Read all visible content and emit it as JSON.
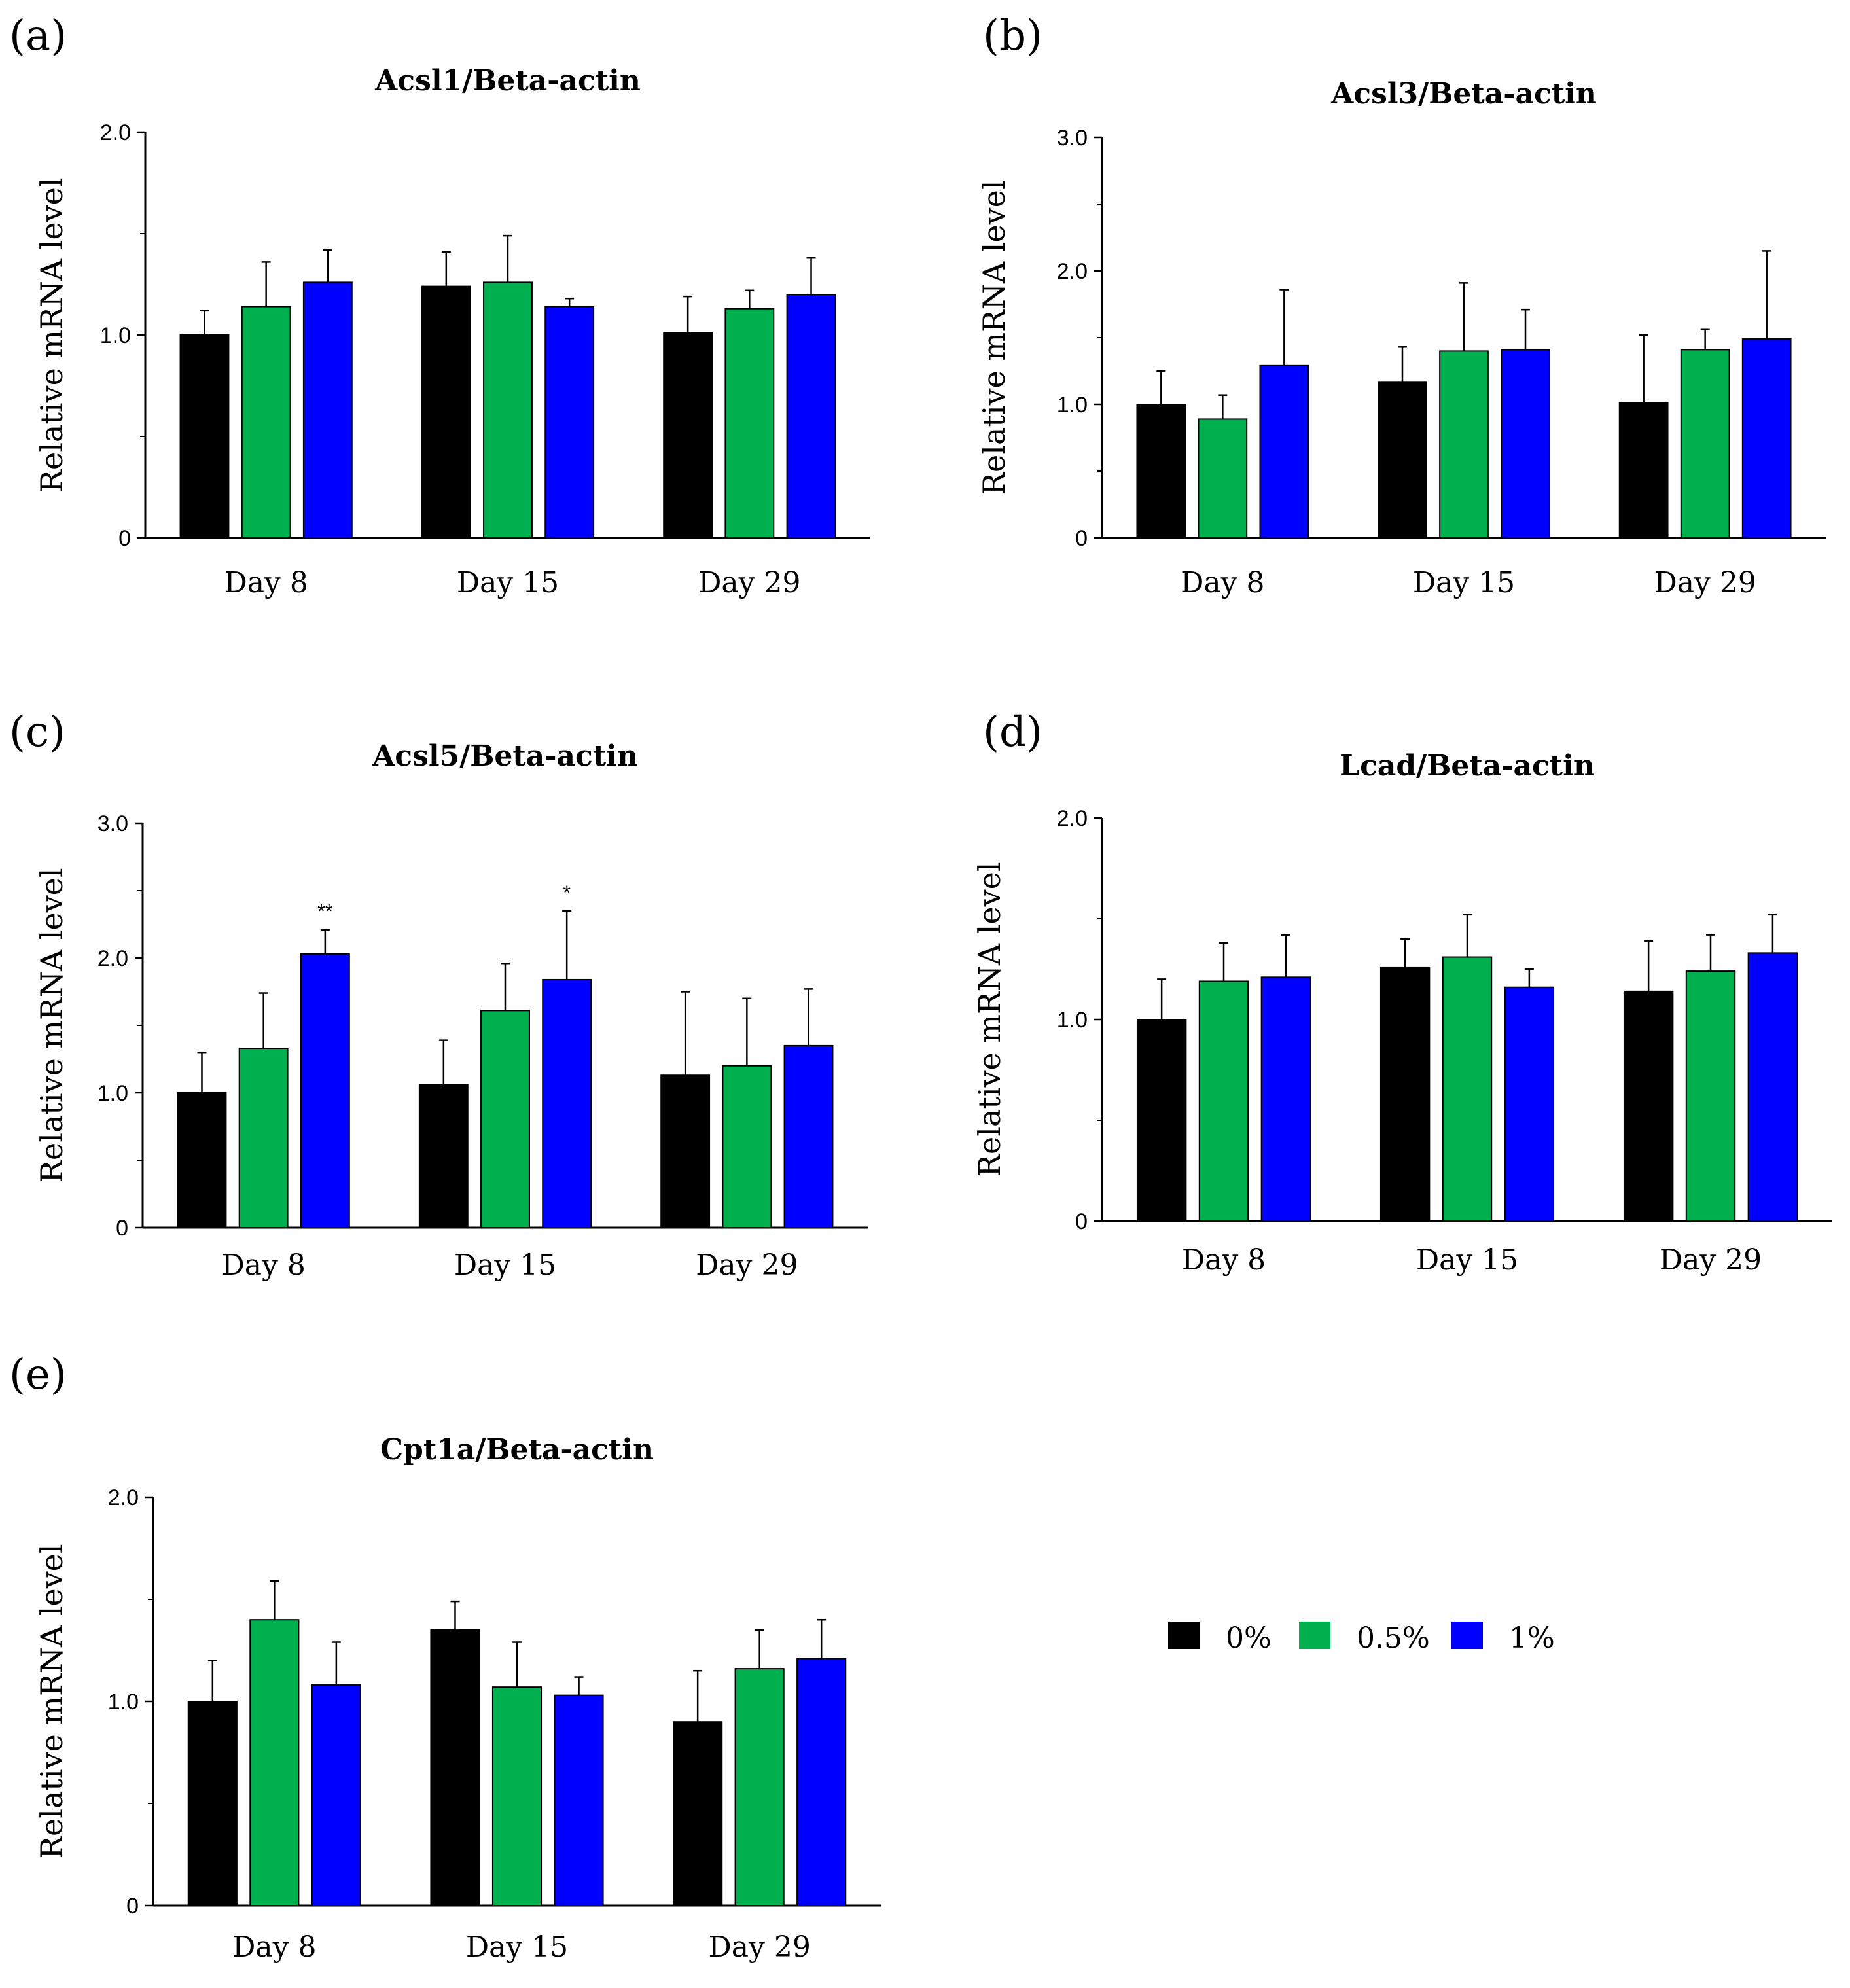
{
  "colors": {
    "s0": "#000000",
    "s1": "#00b04f",
    "s2": "#0000ff"
  },
  "legend": [
    {
      "label": "0%",
      "color": "#000000"
    },
    {
      "label": "0.5%",
      "color": "#00b04f"
    },
    {
      "label": "1%",
      "color": "#0000ff"
    }
  ],
  "chart_data": [
    {
      "panel": "(a)",
      "type": "bar",
      "title": "Acsl1/Beta-actin",
      "ylabel": "Relative mRNA level",
      "ylim": [
        0,
        2.0
      ],
      "yticks": [
        "0",
        "1.0",
        "2.0"
      ],
      "categories": [
        "Day 8",
        "Day 15",
        "Day 29"
      ],
      "series": [
        {
          "name": "0%",
          "values": [
            1.0,
            1.24,
            1.01
          ],
          "errors": [
            0.12,
            0.17,
            0.18
          ]
        },
        {
          "name": "0.5%",
          "values": [
            1.14,
            1.26,
            1.13
          ],
          "errors": [
            0.22,
            0.23,
            0.09
          ]
        },
        {
          "name": "1%",
          "values": [
            1.26,
            1.14,
            1.2
          ],
          "errors": [
            0.16,
            0.04,
            0.18
          ]
        }
      ],
      "annotations": []
    },
    {
      "panel": "(b)",
      "type": "bar",
      "title": "Acsl3/Beta-actin",
      "ylabel": "Relative mRNA level",
      "ylim": [
        0,
        3.0
      ],
      "yticks": [
        "0",
        "1.0",
        "2.0",
        "3.0"
      ],
      "categories": [
        "Day 8",
        "Day 15",
        "Day 29"
      ],
      "series": [
        {
          "name": "0%",
          "values": [
            1.0,
            1.17,
            1.01
          ],
          "errors": [
            0.25,
            0.26,
            0.51
          ]
        },
        {
          "name": "0.5%",
          "values": [
            0.89,
            1.4,
            1.41
          ],
          "errors": [
            0.18,
            0.51,
            0.15
          ]
        },
        {
          "name": "1%",
          "values": [
            1.29,
            1.41,
            1.49
          ],
          "errors": [
            0.57,
            0.3,
            0.66
          ]
        }
      ],
      "annotations": []
    },
    {
      "panel": "(c)",
      "type": "bar",
      "title": "Acsl5/Beta-actin",
      "ylabel": "Relative mRNA level",
      "ylim": [
        0,
        3.0
      ],
      "yticks": [
        "0",
        "1.0",
        "2.0",
        "3.0"
      ],
      "categories": [
        "Day 8",
        "Day 15",
        "Day 29"
      ],
      "series": [
        {
          "name": "0%",
          "values": [
            1.0,
            1.06,
            1.13
          ],
          "errors": [
            0.3,
            0.33,
            0.62
          ]
        },
        {
          "name": "0.5%",
          "values": [
            1.33,
            1.61,
            1.2
          ],
          "errors": [
            0.41,
            0.35,
            0.5
          ]
        },
        {
          "name": "1%",
          "values": [
            2.03,
            1.84,
            1.35
          ],
          "errors": [
            0.18,
            0.51,
            0.42
          ]
        }
      ],
      "annotations": [
        {
          "series": 2,
          "category": 0,
          "text": "**"
        },
        {
          "series": 2,
          "category": 1,
          "text": "*"
        }
      ]
    },
    {
      "panel": "(d)",
      "type": "bar",
      "title": "Lcad/Beta-actin",
      "ylabel": "Relative mRNA level",
      "ylim": [
        0,
        2.0
      ],
      "yticks": [
        "0",
        "1.0",
        "2.0"
      ],
      "categories": [
        "Day 8",
        "Day 15",
        "Day 29"
      ],
      "series": [
        {
          "name": "0%",
          "values": [
            1.0,
            1.26,
            1.14
          ],
          "errors": [
            0.2,
            0.14,
            0.25
          ]
        },
        {
          "name": "0.5%",
          "values": [
            1.19,
            1.31,
            1.24
          ],
          "errors": [
            0.19,
            0.21,
            0.18
          ]
        },
        {
          "name": "1%",
          "values": [
            1.21,
            1.16,
            1.33
          ],
          "errors": [
            0.21,
            0.09,
            0.19
          ]
        }
      ],
      "annotations": []
    },
    {
      "panel": "(e)",
      "type": "bar",
      "title": "Cpt1a/Beta-actin",
      "ylabel": "Relative mRNA level",
      "ylim": [
        0,
        2.0
      ],
      "yticks": [
        "0",
        "1.0",
        "2.0"
      ],
      "categories": [
        "Day 8",
        "Day 15",
        "Day 29"
      ],
      "series": [
        {
          "name": "0%",
          "values": [
            1.0,
            1.35,
            0.9
          ],
          "errors": [
            0.2,
            0.14,
            0.25
          ]
        },
        {
          "name": "0.5%",
          "values": [
            1.4,
            1.07,
            1.16
          ],
          "errors": [
            0.19,
            0.22,
            0.19
          ]
        },
        {
          "name": "1%",
          "values": [
            1.08,
            1.03,
            1.21
          ],
          "errors": [
            0.21,
            0.09,
            0.19
          ]
        }
      ],
      "annotations": []
    }
  ]
}
